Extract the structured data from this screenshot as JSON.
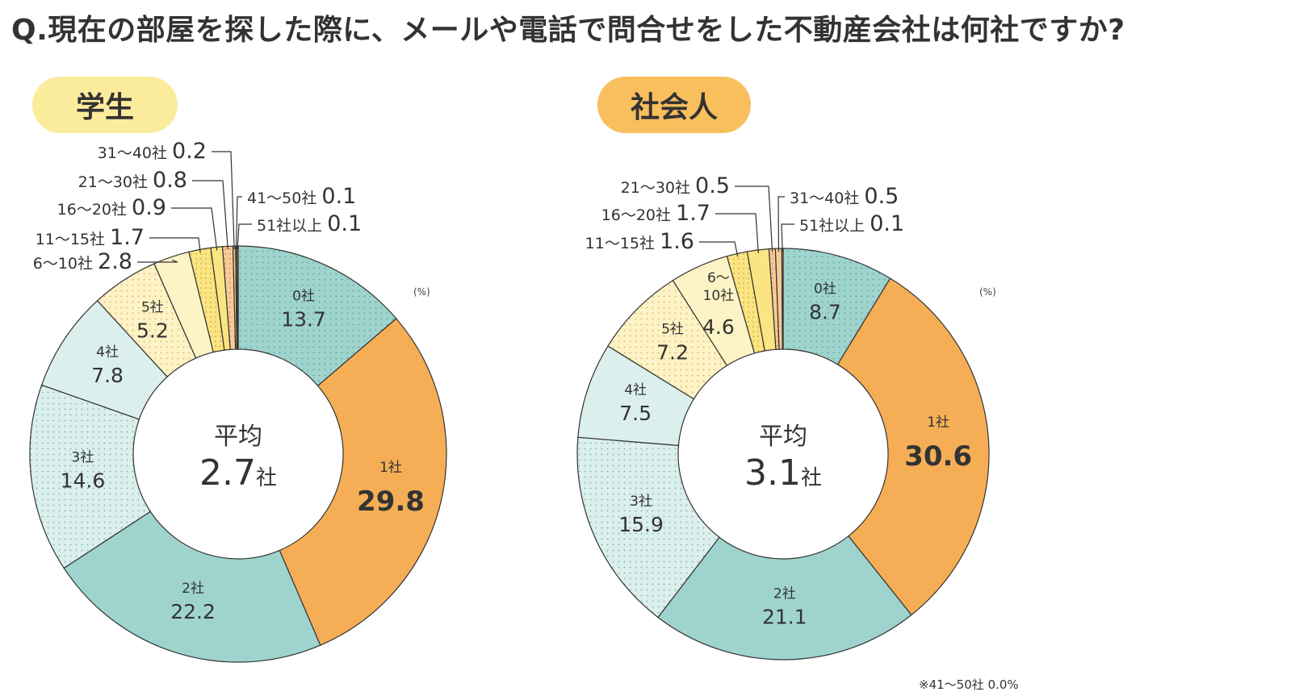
{
  "title": "Q.現在の部屋を探した際に、メールや電話で問合せをした不動産会社は何社ですか?",
  "unit_label": "(%)",
  "note_worker": "※41〜50社 0.0%",
  "colors": {
    "c0": "#9fd4ce",
    "c1": "#f5ae55",
    "c2": "#9fd4ce",
    "c3": "#dbefec",
    "c4": "#dbefec",
    "c5": "#fdf3c6",
    "c6": "#fdf3c6",
    "c7": "#fbe582",
    "c8": "#fbe582",
    "c9": "#f9c996",
    "c10": "#f9c996",
    "c11": "#f5ae55",
    "c12": "#f5ae55",
    "badge_student": "#fbec9c",
    "badge_worker": "#f8bf5c"
  },
  "chart_data": [
    {
      "type": "pie",
      "name": "学生",
      "center_label": "平均",
      "center_value": "2.7",
      "center_unit": "社",
      "categories": [
        "0社",
        "1社",
        "2社",
        "3社",
        "4社",
        "5社",
        "6〜10社",
        "11〜15社",
        "16〜20社",
        "21〜30社",
        "31〜40社",
        "41〜50社",
        "51社以上"
      ],
      "values": [
        13.7,
        29.8,
        22.2,
        14.6,
        7.8,
        5.2,
        2.8,
        1.7,
        0.9,
        0.8,
        0.2,
        0.1,
        0.1
      ],
      "value_labels": [
        "13.7",
        "29.8",
        "22.2",
        "14.6",
        "7.8",
        "5.2",
        "2.8",
        "1.7",
        "0.9",
        "0.8",
        "0.2",
        "0.1",
        "0.1"
      ]
    },
    {
      "type": "pie",
      "name": "社会人",
      "center_label": "平均",
      "center_value": "3.1",
      "center_unit": "社",
      "categories": [
        "0社",
        "1社",
        "2社",
        "3社",
        "4社",
        "5社",
        "6〜10社",
        "11〜15社",
        "16〜20社",
        "21〜30社",
        "31〜40社",
        "51社以上"
      ],
      "values": [
        8.7,
        30.6,
        21.1,
        15.9,
        7.5,
        7.2,
        4.6,
        1.6,
        1.7,
        0.5,
        0.5,
        0.1
      ],
      "value_labels": [
        "8.7",
        "30.6",
        "21.1",
        "15.9",
        "7.5",
        "7.2",
        "4.6",
        "1.6",
        "1.7",
        "0.5",
        "0.5",
        "0.1"
      ]
    }
  ]
}
